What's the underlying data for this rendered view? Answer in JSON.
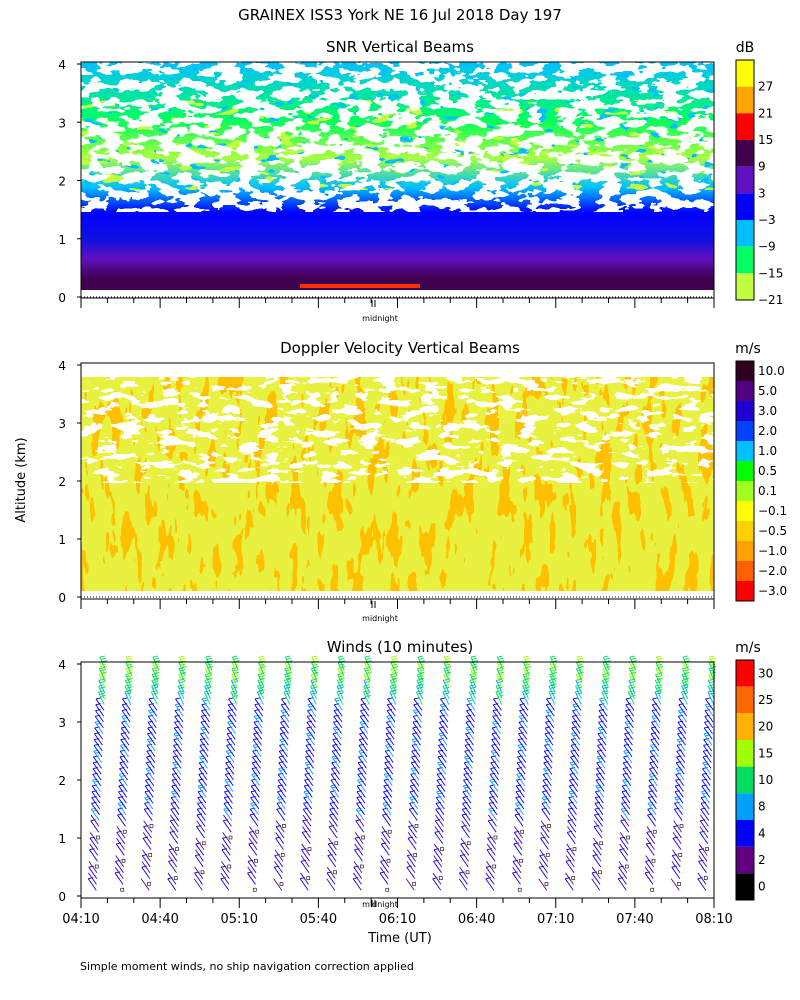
{
  "figure_title": "GRAINEX ISS3 York NE  16 Jul 2018 Day 197",
  "y_axis_label": "Altitude (km)",
  "x_axis_label": "Time (UT)",
  "midnight_label": "midnight",
  "footnote": "Simple moment winds, no ship navigation correction applied",
  "chart_data": [
    {
      "type": "heatmap",
      "title": "SNR Vertical Beams",
      "units": "dB",
      "ylabel": "Altitude (km)",
      "ylim": [
        0,
        4
      ],
      "yticks": [
        "0",
        "1",
        "2",
        "3",
        "4"
      ],
      "colorbar": {
        "labels": [
          "27",
          "21",
          "15",
          "9",
          "3",
          "−3",
          "−9",
          "−15",
          "−21"
        ],
        "colors": [
          "#ffff00",
          "#ffa500",
          "#ff0000",
          "#400050",
          "#6010c0",
          "#0000ff",
          "#00bfff",
          "#00ff60",
          "#c0ff40"
        ]
      },
      "description_layers": [
        {
          "altitude_km": [
            0.0,
            0.5
          ],
          "typical_dB": 9
        },
        {
          "altitude_km": [
            0.5,
            1.3
          ],
          "typical_dB": 3
        },
        {
          "altitude_km": [
            1.3,
            2.3
          ],
          "typical_dB": -3
        },
        {
          "altitude_km": [
            2.3,
            3.5
          ],
          "typical_dB": -12
        },
        {
          "altitude_km": [
            3.5,
            4.0
          ],
          "typical_dB": -9
        }
      ]
    },
    {
      "type": "heatmap",
      "title": "Doppler Velocity Vertical Beams",
      "units": "m/s",
      "ylabel": "Altitude (km)",
      "ylim": [
        0,
        4
      ],
      "yticks": [
        "0",
        "1",
        "2",
        "3",
        "4"
      ],
      "colorbar": {
        "labels": [
          "10.0",
          "5.0",
          "3.0",
          "2.0",
          "1.0",
          "0.5",
          "0.1",
          "−0.1",
          "−0.5",
          "−1.0",
          "−2.0",
          "−3.0"
        ],
        "colors": [
          "#300020",
          "#500080",
          "#2000d0",
          "#0040ff",
          "#00c0ff",
          "#00ff00",
          "#a0ff20",
          "#ffff00",
          "#ffd000",
          "#ffa000",
          "#ff6000",
          "#ff0000"
        ]
      },
      "typical_velocity_m_s": -0.3
    },
    {
      "type": "wind_barbs",
      "title": "Winds (10 minutes)",
      "units": "m/s",
      "ylabel": "Altitude (km)",
      "xlabel": "Time (UT)",
      "ylim": [
        0,
        4
      ],
      "yticks": [
        "0",
        "1",
        "2",
        "3",
        "4"
      ],
      "xticks": [
        "04:10",
        "04:40",
        "05:10",
        "05:40",
        "06:10",
        "06:40",
        "07:10",
        "07:40",
        "08:10"
      ],
      "colorbar": {
        "labels": [
          "30",
          "25",
          "20",
          "15",
          "10",
          "8",
          "4",
          "2",
          "0"
        ],
        "colors": [
          "#ff0000",
          "#ff6a00",
          "#ffb000",
          "#a0ff00",
          "#00dd60",
          "#00a0ff",
          "#0000ff",
          "#600080",
          "#000000"
        ]
      },
      "profile_times": [
        "04:10",
        "04:20",
        "04:30",
        "04:40",
        "04:50",
        "05:00",
        "05:10",
        "05:20",
        "05:30",
        "05:40",
        "05:50",
        "06:00",
        "06:10",
        "06:20",
        "06:30",
        "06:40",
        "06:50",
        "07:00",
        "07:10",
        "07:20",
        "07:30",
        "07:40",
        "07:50",
        "08:00"
      ],
      "profile_summary": [
        {
          "altitude_km": [
            0.0,
            1.2
          ],
          "speed_m_s": 3
        },
        {
          "altitude_km": [
            1.2,
            3.3
          ],
          "speed_m_s": 6
        },
        {
          "altitude_km": [
            3.3,
            4.0
          ],
          "speed_m_s": 10
        }
      ]
    }
  ]
}
